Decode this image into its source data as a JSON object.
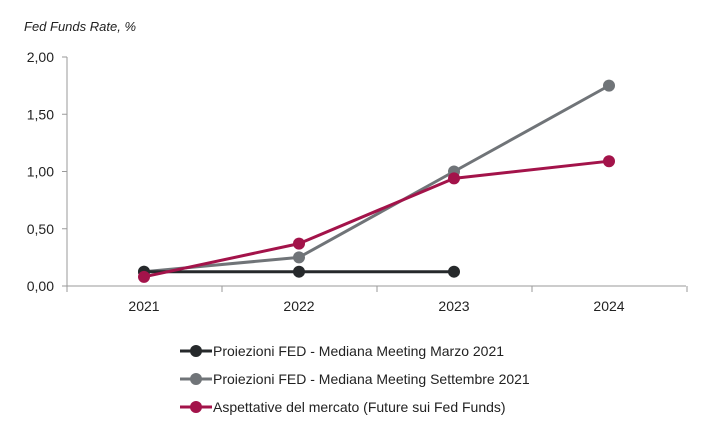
{
  "chart_data": {
    "type": "line",
    "title": "",
    "ylabel": "Fed Funds Rate, %",
    "xlabel": "",
    "categories": [
      "2021",
      "2022",
      "2023",
      "2024"
    ],
    "ylim": [
      0,
      2
    ],
    "yticks": [
      "0,00",
      "0,50",
      "1,00",
      "1,50",
      "2,00"
    ],
    "grid": false,
    "legend_position": "bottom",
    "series": [
      {
        "name": "Proiezioni FED - Mediana Meeting Marzo 2021",
        "color": "#26292b",
        "values": [
          0.125,
          0.125,
          0.125,
          null
        ]
      },
      {
        "name": "Proiezioni FED - Mediana Meeting Settembre 2021",
        "color": "#707478",
        "values": [
          0.125,
          0.25,
          1.0,
          1.75
        ]
      },
      {
        "name": "Aspettative del mercato (Future sui Fed Funds)",
        "color": "#a3134a",
        "values": [
          0.08,
          0.37,
          0.94,
          1.09
        ]
      }
    ]
  }
}
